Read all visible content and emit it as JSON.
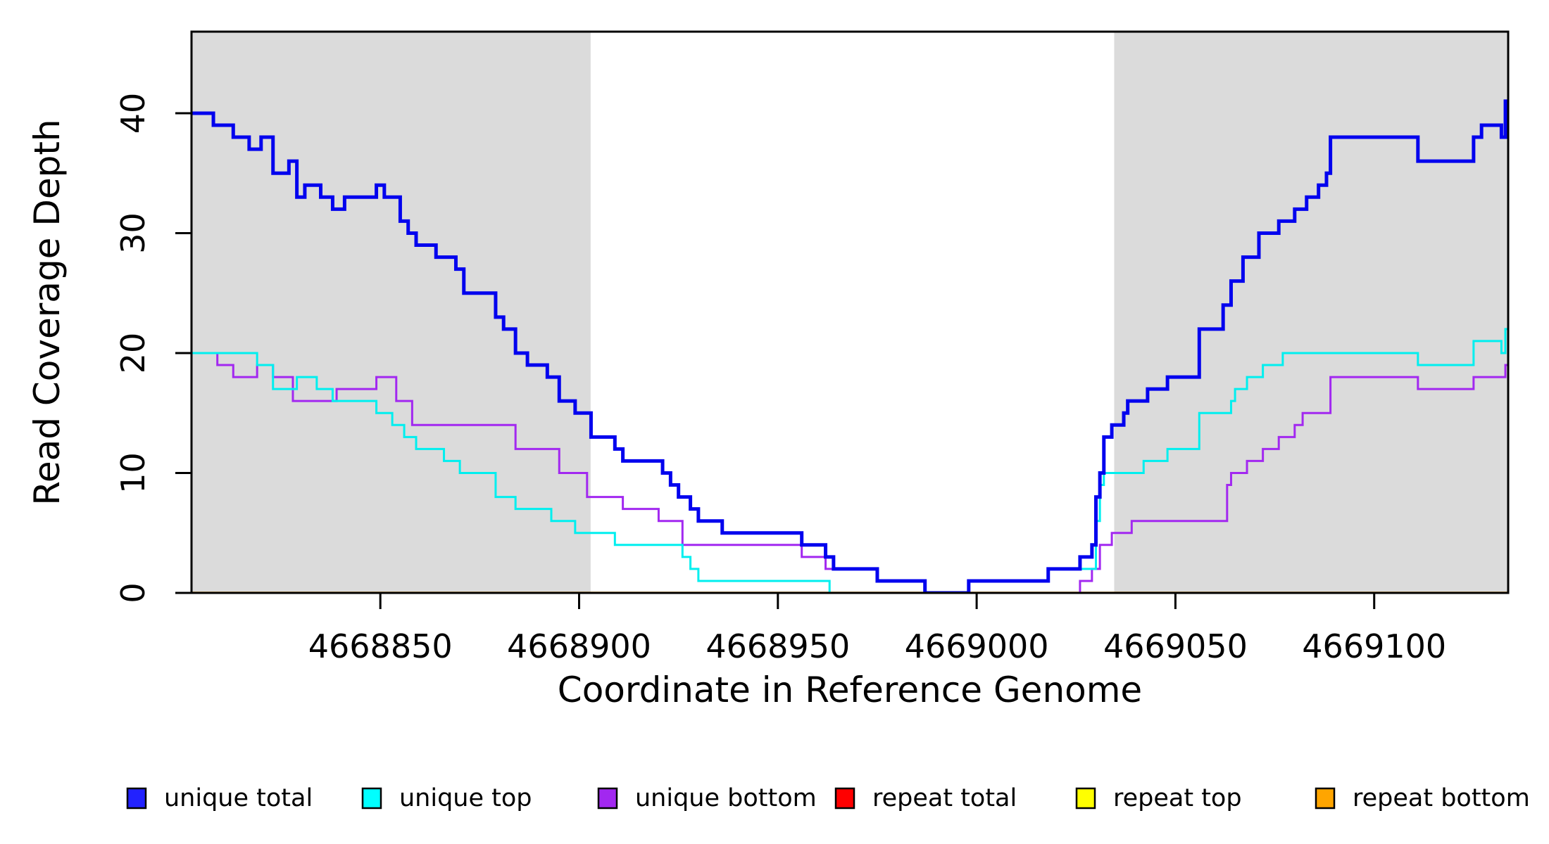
{
  "figure": {
    "background": "#FFFFFF",
    "shade_color": "#DBDBDB",
    "axis_color": "#000000"
  },
  "chart_data": {
    "type": "line",
    "step": true,
    "title": "",
    "xlabel": "Coordinate in Reference Genome",
    "ylabel": "Read Coverage Depth",
    "xlim": [
      4668802.5,
      4669133.7
    ],
    "ylim": [
      0,
      46.8
    ],
    "x_ticks": [
      4668850,
      4668900,
      4668950,
      4669000,
      4669050,
      4669100
    ],
    "y_ticks": [
      0,
      10,
      20,
      30,
      40
    ],
    "grid": false,
    "legend_position": "bottom",
    "shaded_regions": [
      {
        "x0": 4668802.5,
        "x1": 4668902.9
      },
      {
        "x0": 4669034.6,
        "x1": 4669133.7
      }
    ],
    "series": [
      {
        "name": "repeat total",
        "color": "#FF0000",
        "width": 3,
        "points": [
          [
            4668802.5,
            0
          ]
        ]
      },
      {
        "name": "repeat top",
        "color": "#FFFF00",
        "width": 3,
        "points": [
          [
            4668802.5,
            0
          ]
        ]
      },
      {
        "name": "repeat bottom",
        "color": "#FFA500",
        "width": 3.5,
        "points": [
          [
            4668802.5,
            0
          ]
        ]
      },
      {
        "name": "unique bottom",
        "color": "#A228F0",
        "width": 3,
        "points": [
          [
            4668802.5,
            20
          ],
          [
            4668809,
            19
          ],
          [
            4668813,
            18
          ],
          [
            4668819,
            19
          ],
          [
            4668823,
            18
          ],
          [
            4668828,
            16
          ],
          [
            4668839,
            17
          ],
          [
            4668849,
            18
          ],
          [
            4668854,
            16
          ],
          [
            4668858,
            14
          ],
          [
            4668884,
            12
          ],
          [
            4668895,
            10
          ],
          [
            4668902,
            8
          ],
          [
            4668911,
            7
          ],
          [
            4668920,
            6
          ],
          [
            4668926,
            4
          ],
          [
            4668956,
            3
          ],
          [
            4668962,
            2
          ],
          [
            4668975,
            1
          ],
          [
            4668987,
            0
          ],
          [
            4669026,
            1
          ],
          [
            4669029,
            2
          ],
          [
            4669031,
            4
          ],
          [
            4669034,
            5
          ],
          [
            4669039,
            6
          ],
          [
            4669063,
            9
          ],
          [
            4669064,
            10
          ],
          [
            4669068,
            11
          ],
          [
            4669072,
            12
          ],
          [
            4669076,
            13
          ],
          [
            4669080,
            14
          ],
          [
            4669082,
            15
          ],
          [
            4669089,
            18
          ],
          [
            4669111,
            17
          ],
          [
            4669125,
            18
          ],
          [
            4669133,
            19
          ]
        ]
      },
      {
        "name": "unique top",
        "color": "#00EFEF",
        "width": 3,
        "points": [
          [
            4668802.5,
            20
          ],
          [
            4668819,
            19
          ],
          [
            4668823,
            17
          ],
          [
            4668829,
            18
          ],
          [
            4668834,
            17
          ],
          [
            4668838,
            16
          ],
          [
            4668849,
            15
          ],
          [
            4668853,
            14
          ],
          [
            4668856,
            13
          ],
          [
            4668859,
            12
          ],
          [
            4668866,
            11
          ],
          [
            4668870,
            10
          ],
          [
            4668879,
            8
          ],
          [
            4668884,
            7
          ],
          [
            4668893,
            6
          ],
          [
            4668899,
            5
          ],
          [
            4668909,
            4
          ],
          [
            4668926,
            3
          ],
          [
            4668928,
            2
          ],
          [
            4668930,
            1
          ],
          [
            4668963,
            0
          ],
          [
            4668998,
            1
          ],
          [
            4669018,
            2
          ],
          [
            4669030,
            6
          ],
          [
            4669031,
            9
          ],
          [
            4669032,
            10
          ],
          [
            4669042,
            11
          ],
          [
            4669048,
            12
          ],
          [
            4669056,
            15
          ],
          [
            4669064,
            16
          ],
          [
            4669065,
            17
          ],
          [
            4669068,
            18
          ],
          [
            4669072,
            19
          ],
          [
            4669077,
            20
          ],
          [
            4669111,
            19
          ],
          [
            4669125,
            21
          ],
          [
            4669132,
            20
          ],
          [
            4669133,
            22
          ]
        ]
      },
      {
        "name": "unique total",
        "color": "#0202EE",
        "width": 5,
        "points": [
          [
            4668802.5,
            40
          ],
          [
            4668808,
            39
          ],
          [
            4668813,
            38
          ],
          [
            4668817,
            37
          ],
          [
            4668820,
            38
          ],
          [
            4668823,
            35
          ],
          [
            4668827,
            36
          ],
          [
            4668829,
            33
          ],
          [
            4668831,
            34
          ],
          [
            4668835,
            33
          ],
          [
            4668838,
            32
          ],
          [
            4668841,
            33
          ],
          [
            4668849,
            34
          ],
          [
            4668851,
            33
          ],
          [
            4668855,
            31
          ],
          [
            4668857,
            30
          ],
          [
            4668859,
            29
          ],
          [
            4668864,
            28
          ],
          [
            4668869,
            27
          ],
          [
            4668871,
            25
          ],
          [
            4668879,
            23
          ],
          [
            4668881,
            22
          ],
          [
            4668884,
            20
          ],
          [
            4668887,
            19
          ],
          [
            4668892,
            18
          ],
          [
            4668895,
            16
          ],
          [
            4668899,
            15
          ],
          [
            4668903,
            13
          ],
          [
            4668909,
            12
          ],
          [
            4668911,
            11
          ],
          [
            4668921,
            10
          ],
          [
            4668923,
            9
          ],
          [
            4668925,
            8
          ],
          [
            4668928,
            7
          ],
          [
            4668930,
            6
          ],
          [
            4668936,
            5
          ],
          [
            4668956,
            4
          ],
          [
            4668962,
            3
          ],
          [
            4668964,
            2
          ],
          [
            4668975,
            1
          ],
          [
            4668987,
            0
          ],
          [
            4668998,
            1
          ],
          [
            4669018,
            2
          ],
          [
            4669026,
            3
          ],
          [
            4669029,
            4
          ],
          [
            4669030,
            8
          ],
          [
            4669031,
            10
          ],
          [
            4669032,
            13
          ],
          [
            4669034,
            14
          ],
          [
            4669037,
            15
          ],
          [
            4669038,
            16
          ],
          [
            4669043,
            17
          ],
          [
            4669048,
            18
          ],
          [
            4669056,
            22
          ],
          [
            4669062,
            24
          ],
          [
            4669064,
            26
          ],
          [
            4669067,
            28
          ],
          [
            4669071,
            30
          ],
          [
            4669076,
            31
          ],
          [
            4669080,
            32
          ],
          [
            4669083,
            33
          ],
          [
            4669086,
            34
          ],
          [
            4669088,
            35
          ],
          [
            4669089,
            38
          ],
          [
            4669111,
            36
          ],
          [
            4669125,
            38
          ],
          [
            4669127,
            39
          ],
          [
            4669132,
            38
          ],
          [
            4669133,
            41
          ]
        ]
      }
    ],
    "legend": [
      {
        "label": "unique total",
        "color": "#2222FF"
      },
      {
        "label": "unique top",
        "color": "#00FFFF"
      },
      {
        "label": "unique bottom",
        "color": "#A228F0"
      },
      {
        "label": "repeat total",
        "color": "#FF0000"
      },
      {
        "label": "repeat top",
        "color": "#FFFF00"
      },
      {
        "label": "repeat bottom",
        "color": "#FFA500"
      }
    ]
  }
}
